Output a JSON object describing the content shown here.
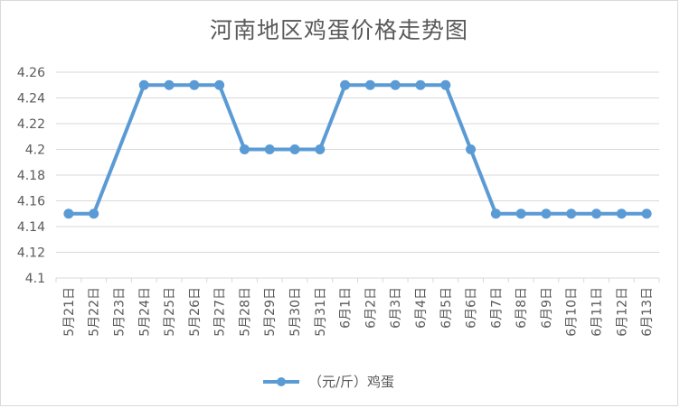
{
  "chart_data": {
    "type": "line",
    "title": "河南地区鸡蛋价格走势图",
    "categories": [
      "5月21日",
      "5月22日",
      "5月23日",
      "5月24日",
      "5月25日",
      "5月26日",
      "5月27日",
      "5月28日",
      "5月29日",
      "5月30日",
      "5月31日",
      "6月1日",
      "6月2日",
      "6月3日",
      "6月4日",
      "6月5日",
      "6月6日",
      "6月7日",
      "6月8日",
      "6月9日",
      "6月10日",
      "6月11日",
      "6月12日",
      "6月13日"
    ],
    "series": [
      {
        "name": "（元/斤）鸡蛋",
        "values": [
          4.15,
          4.15,
          null,
          4.25,
          4.25,
          4.25,
          4.25,
          4.2,
          4.2,
          4.2,
          4.2,
          4.25,
          4.25,
          4.25,
          4.25,
          4.25,
          4.2,
          4.15,
          4.15,
          4.15,
          4.15,
          4.15,
          4.15,
          4.15
        ],
        "color": "#5b9bd5"
      }
    ],
    "yticks": [
      "4.1",
      "4.12",
      "4.14",
      "4.16",
      "4.18",
      "4.2",
      "4.22",
      "4.24",
      "4.26"
    ],
    "ylim": [
      4.1,
      4.26
    ],
    "grid": true,
    "legend": "bottom"
  },
  "colors": {
    "series": "#5b9bd5",
    "grid": "#d9d9d9",
    "text": "#595959"
  }
}
